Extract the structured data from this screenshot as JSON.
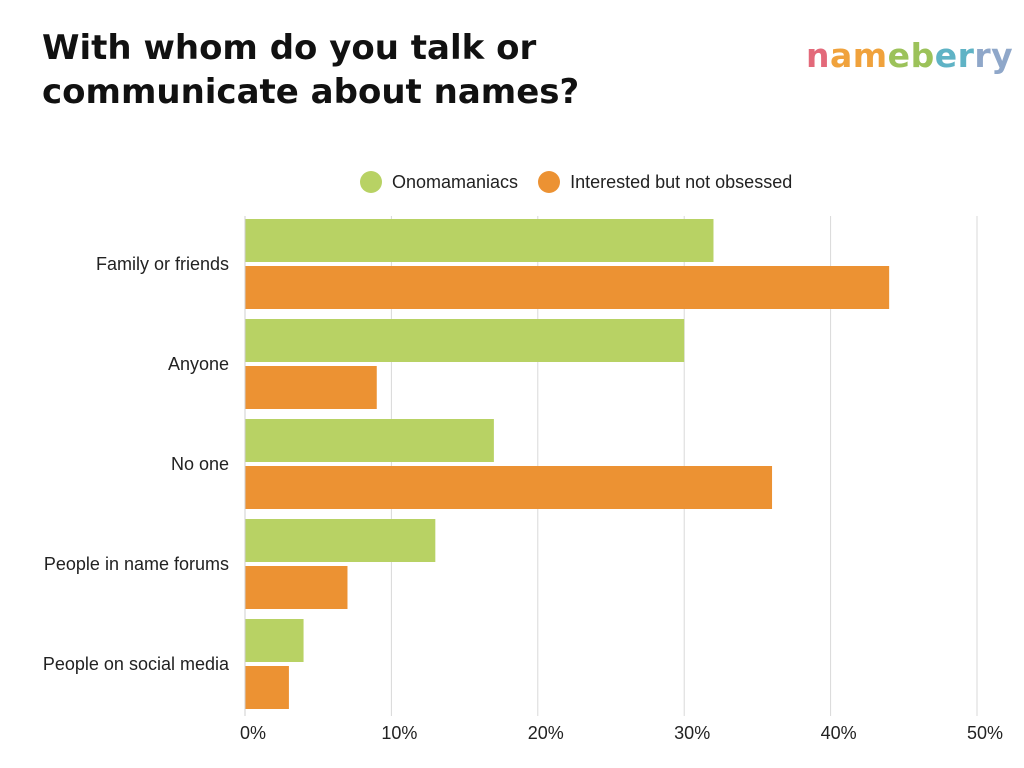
{
  "title": "With whom do you talk or communicate about names?",
  "logo": {
    "letters": [
      {
        "ch": "n",
        "color": "#E3697A"
      },
      {
        "ch": "a",
        "color": "#F0A23C"
      },
      {
        "ch": "m",
        "color": "#F0A23C"
      },
      {
        "ch": "e",
        "color": "#9CC25A"
      },
      {
        "ch": "b",
        "color": "#9CC25A"
      },
      {
        "ch": "e",
        "color": "#5FB3C5"
      },
      {
        "ch": "r",
        "color": "#5FB3C5"
      },
      {
        "ch": "r",
        "color": "#8FA7C9"
      },
      {
        "ch": "y",
        "color": "#8FA7C9"
      }
    ]
  },
  "chart_data": {
    "type": "bar",
    "orientation": "horizontal",
    "categories": [
      "Family or friends",
      "Anyone",
      "No one",
      "People in name forums",
      "People on social media"
    ],
    "series": [
      {
        "name": "Onomamaniacs",
        "color": "#B8D264",
        "values": [
          32,
          30,
          17,
          13,
          4
        ]
      },
      {
        "name": "Interested but not obsessed",
        "color": "#EC9233",
        "values": [
          44,
          9,
          36,
          7,
          3
        ]
      }
    ],
    "xlim": [
      0,
      50
    ],
    "xticks": [
      0,
      10,
      20,
      30,
      40,
      50
    ],
    "tick_suffix": "%",
    "grid": true,
    "legend_position": "top"
  }
}
